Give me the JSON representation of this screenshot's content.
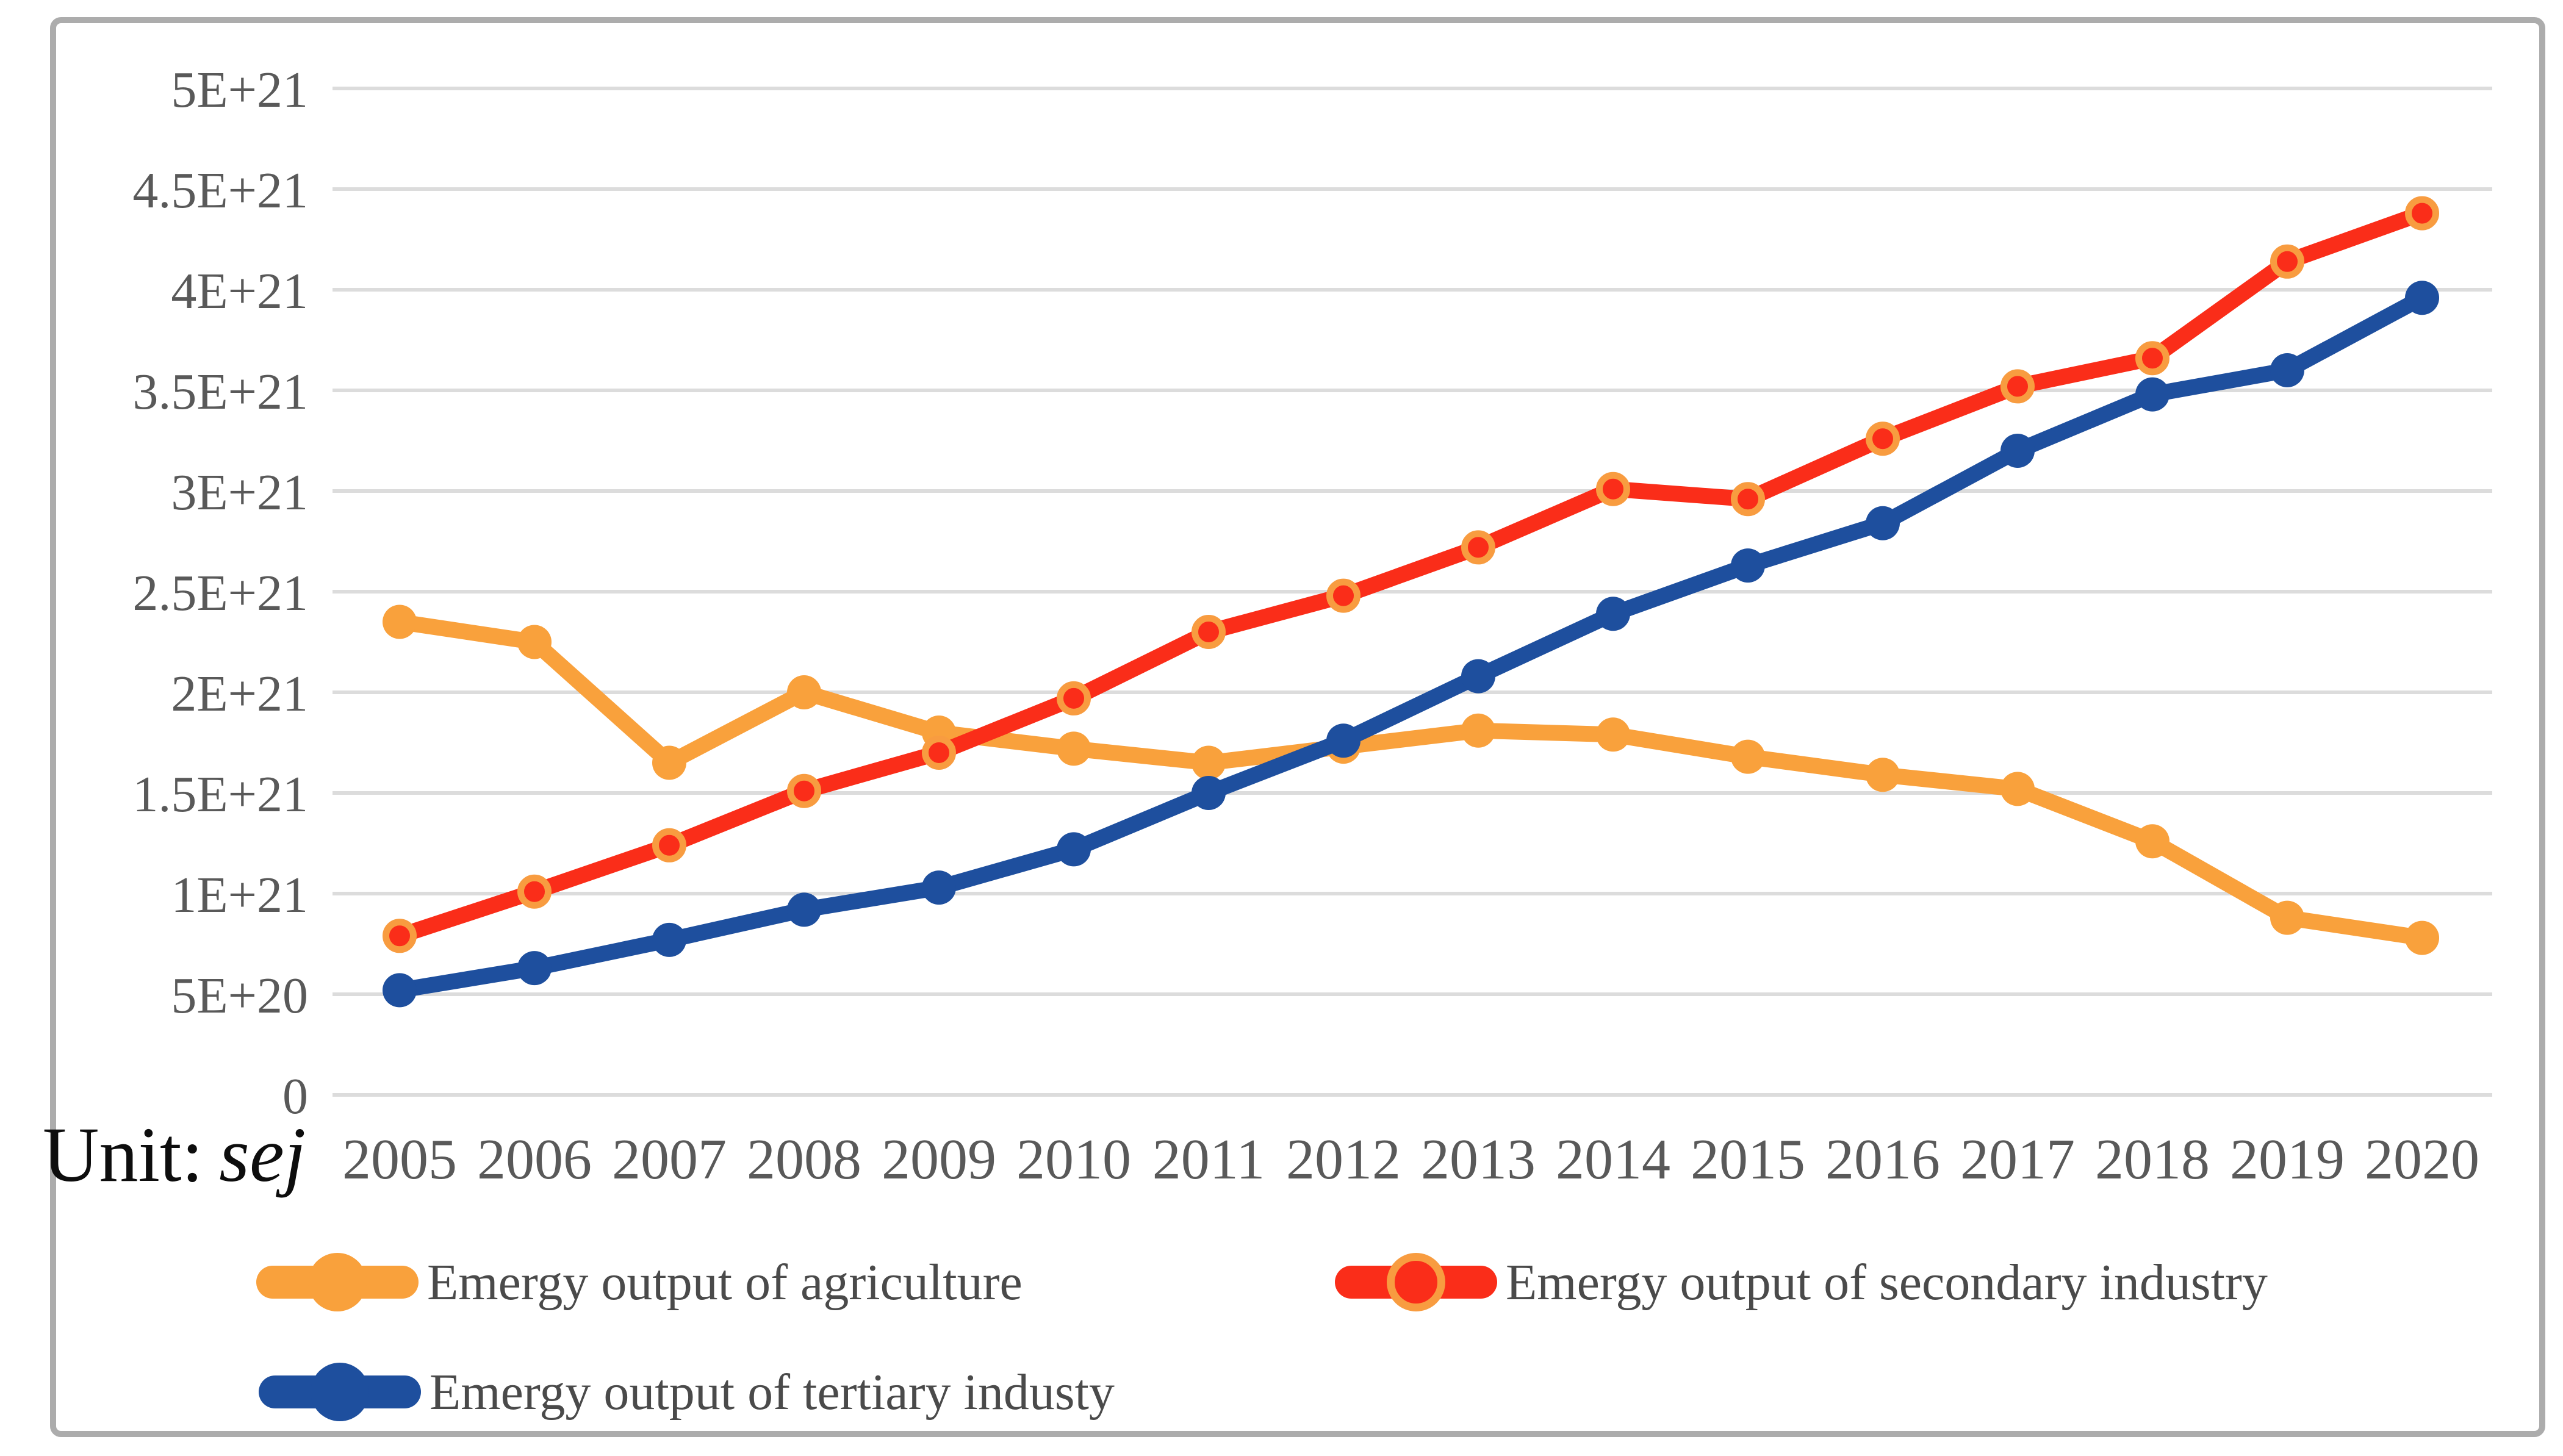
{
  "unit_label": {
    "prefix": "Unit:",
    "unit": "sej"
  },
  "colors": {
    "gridline": "#dcdcdc",
    "frame_border": "#acacac",
    "axis_text": "#595959",
    "legend_text": "#4a4a4a",
    "background": "#ffffff"
  },
  "chart_data": {
    "type": "line",
    "title": "",
    "xlabel": "",
    "ylabel": "",
    "grid": true,
    "legend_position": "bottom",
    "ylim": [
      0,
      5e+21
    ],
    "categories": [
      "2005",
      "2006",
      "2007",
      "2008",
      "2009",
      "2010",
      "2011",
      "2012",
      "2013",
      "2014",
      "2015",
      "2016",
      "2017",
      "2018",
      "2019",
      "2020"
    ],
    "y_ticks": [
      {
        "value": 0,
        "label": "0"
      },
      {
        "value": 5e+20,
        "label": "5E+20"
      },
      {
        "value": 1e+21,
        "label": "1E+21"
      },
      {
        "value": 1.5e+21,
        "label": "1.5E+21"
      },
      {
        "value": 2e+21,
        "label": "2E+21"
      },
      {
        "value": 2.5e+21,
        "label": "2.5E+21"
      },
      {
        "value": 3e+21,
        "label": "3E+21"
      },
      {
        "value": 3.5e+21,
        "label": "3.5E+21"
      },
      {
        "value": 4e+21,
        "label": "4E+21"
      },
      {
        "value": 4.5e+21,
        "label": "4.5E+21"
      },
      {
        "value": 5e+21,
        "label": "5E+21"
      }
    ],
    "series": [
      {
        "name": "Emergy output of agriculture",
        "color": "#f9a13c",
        "ring": "#f9a13c",
        "marker": "circle",
        "values": [
          2.35e+21,
          2.25e+21,
          1.65e+21,
          2e+21,
          1.8e+21,
          1.72e+21,
          1.65e+21,
          1.73e+21,
          1.81e+21,
          1.79e+21,
          1.68e+21,
          1.59e+21,
          1.52e+21,
          1.26e+21,
          8.8e+20,
          7.8e+20
        ]
      },
      {
        "name": "Emergy output of secondary industry",
        "color": "#fa2d19",
        "ring": "#f89c40",
        "marker": "circle",
        "values": [
          7.9e+20,
          1.01e+21,
          1.24e+21,
          1.51e+21,
          1.7e+21,
          1.97e+21,
          2.3e+21,
          2.48e+21,
          2.72e+21,
          3.01e+21,
          2.96e+21,
          3.26e+21,
          3.52e+21,
          3.66e+21,
          4.14e+21,
          4.38e+21
        ]
      },
      {
        "name": "Emergy output of tertiary industy",
        "color": "#1e4f9e",
        "ring": "#1e4f9e",
        "marker": "circle",
        "values": [
          5.2e+20,
          6.3e+20,
          7.7e+20,
          9.2e+20,
          1.03e+21,
          1.22e+21,
          1.5e+21,
          1.76e+21,
          2.08e+21,
          2.39e+21,
          2.63e+21,
          2.84e+21,
          3.2e+21,
          3.48e+21,
          3.6e+21,
          3.96e+21
        ]
      }
    ]
  }
}
